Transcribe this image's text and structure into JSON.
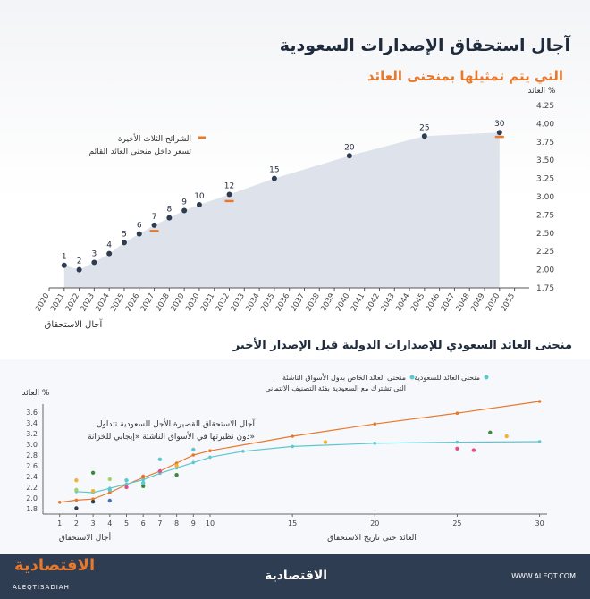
{
  "header": {
    "title": "آجال استحقاق الإصدارات السعودية",
    "subtitle": "التي يتم تمثيلها بمنحنى العائد"
  },
  "top_legend": {
    "line1": "الشرائح الثلاث الأخيرة",
    "line2": "تسعر داخل منحنى العائد القائم"
  },
  "middle": {
    "title": "منحنى العائد السعودي للإصدارات الدولية قبل الإصدار الأخير"
  },
  "bottom_legend": {
    "item1": "منحنى العائد للسعودية",
    "item2a": "منحنى العائد الخاص بدول الأسواق الناشئة",
    "item2b": "التي تشترك مع السعودية بفئة التصنيف الائتماني"
  },
  "bottom_annotation": {
    "line1": "آجال الاستحقاق القصيرة الأجل للسعودية تتداول",
    "line2": "دون نظيرتها في الأسواق الناشئة «إيجابي للخزانة»"
  },
  "footer": {
    "logo_ar": "الاقتصادية",
    "logo_en": "ALEQTISADIAH",
    "center": "الاقتصادية",
    "website": "WWW.ALEQT.COM"
  },
  "colors": {
    "navy": "#2f3d52",
    "orange": "#e8782b",
    "area": "#d8dde7",
    "teal": "#5bc8d0"
  },
  "chart_data": [
    {
      "type": "area",
      "title": "",
      "xlabel": "آجال الاستحقاق",
      "ylabel": "العائد %",
      "ylim": [
        1.75,
        4.25
      ],
      "yticks": [
        "1.75",
        "2.00",
        "2.25",
        "2.50",
        "2.75",
        "3.00",
        "3.25",
        "3.50",
        "3.75",
        "4.00",
        "4.25"
      ],
      "xticks": [
        "2020",
        "2021",
        "2022",
        "2023",
        "2024",
        "2025",
        "2026",
        "2027",
        "2028",
        "2029",
        "2030",
        "2031",
        "2032",
        "2033",
        "2034",
        "2035",
        "2036",
        "2037",
        "2038",
        "2039",
        "2040",
        "2041",
        "2042",
        "2043",
        "2044",
        "2045",
        "2046",
        "2047",
        "2048",
        "2049",
        "2050",
        "2055"
      ],
      "series": [
        {
          "points": [
            {
              "x": 2021,
              "y": 2.06,
              "label": "1"
            },
            {
              "x": 2022,
              "y": 2.0,
              "label": "2"
            },
            {
              "x": 2023,
              "y": 2.1,
              "label": "3"
            },
            {
              "x": 2024,
              "y": 2.22,
              "label": "4"
            },
            {
              "x": 2025,
              "y": 2.37,
              "label": "5"
            },
            {
              "x": 2026,
              "y": 2.49,
              "label": "6"
            },
            {
              "x": 2027,
              "y": 2.61,
              "label": "7"
            },
            {
              "x": 2028,
              "y": 2.71,
              "label": "8"
            },
            {
              "x": 2029,
              "y": 2.81,
              "label": "9"
            },
            {
              "x": 2030,
              "y": 2.89,
              "label": "10"
            },
            {
              "x": 2032,
              "y": 3.03,
              "label": "12"
            },
            {
              "x": 2035,
              "y": 3.25,
              "label": "15"
            },
            {
              "x": 2040,
              "y": 3.56,
              "label": "20"
            },
            {
              "x": 2045,
              "y": 3.83,
              "label": "25"
            },
            {
              "x": 2050,
              "y": 3.88,
              "label": "30"
            }
          ]
        },
        {
          "name": "الشرائح الثلاث الأخيرة",
          "marker": "dash",
          "points": [
            {
              "x": 2027,
              "y": 2.53
            },
            {
              "x": 2032,
              "y": 2.94
            },
            {
              "x": 2050,
              "y": 3.82
            }
          ]
        }
      ]
    },
    {
      "type": "line",
      "title": "",
      "xlabel": "أجال الاستحقاق",
      "xlabel2": "العائد حتى تاريخ الاستحقاق",
      "ylabel": "العائد %",
      "ylim": [
        1.7,
        3.75
      ],
      "yticks": [
        "1.8",
        "2.0",
        "2.2",
        "2.4",
        "2.6",
        "2.8",
        "3.0",
        "3.2",
        "3.4",
        "3.6"
      ],
      "xticks": [
        "1",
        "2",
        "3",
        "4",
        "5",
        "6",
        "7",
        "8",
        "9",
        "10",
        "15",
        "20",
        "25",
        "30"
      ],
      "series": [
        {
          "name": "منحنى العائد للسعودية",
          "color": "#e8782b",
          "points": [
            [
              1,
              1.92
            ],
            [
              2,
              1.96
            ],
            [
              3,
              1.98
            ],
            [
              4,
              2.1
            ],
            [
              5,
              2.25
            ],
            [
              6,
              2.38
            ],
            [
              7,
              2.5
            ],
            [
              8,
              2.65
            ],
            [
              9,
              2.8
            ],
            [
              10,
              2.88
            ],
            [
              15,
              3.15
            ],
            [
              20,
              3.38
            ],
            [
              25,
              3.58
            ],
            [
              30,
              3.8
            ]
          ]
        },
        {
          "name": "منحنى العائد الخاص بدول الأسواق الناشئة",
          "color": "#5bc8d0",
          "points": [
            [
              2,
              2.12
            ],
            [
              3,
              2.1
            ],
            [
              4,
              2.18
            ],
            [
              5,
              2.26
            ],
            [
              6,
              2.34
            ],
            [
              7,
              2.46
            ],
            [
              8,
              2.56
            ],
            [
              9,
              2.66
            ],
            [
              10,
              2.76
            ],
            [
              12,
              2.87
            ],
            [
              15,
              2.96
            ],
            [
              20,
              3.02
            ],
            [
              25,
              3.04
            ],
            [
              30,
              3.05
            ]
          ]
        }
      ],
      "scatter": [
        {
          "x": 2,
          "y": 1.81,
          "color": "#2f3d52"
        },
        {
          "x": 2,
          "y": 2.33,
          "color": "#f2b233"
        },
        {
          "x": 2,
          "y": 2.15,
          "color": "#9fd36a"
        },
        {
          "x": 3,
          "y": 1.93,
          "color": "#2f3d52"
        },
        {
          "x": 3,
          "y": 2.47,
          "color": "#3b8a3e"
        },
        {
          "x": 3,
          "y": 2.13,
          "color": "#f2b233"
        },
        {
          "x": 4,
          "y": 1.95,
          "color": "#4a6fb5"
        },
        {
          "x": 4,
          "y": 2.35,
          "color": "#9fd36a"
        },
        {
          "x": 4,
          "y": 2.15,
          "color": "#5bc8d0"
        },
        {
          "x": 5,
          "y": 2.2,
          "color": "#e84d8a"
        },
        {
          "x": 5,
          "y": 2.33,
          "color": "#5bc8d0"
        },
        {
          "x": 6,
          "y": 2.22,
          "color": "#3b8a3e"
        },
        {
          "x": 6,
          "y": 2.28,
          "color": "#5bc8d0"
        },
        {
          "x": 6,
          "y": 2.4,
          "color": "#e8782b"
        },
        {
          "x": 7,
          "y": 2.72,
          "color": "#5bc8d0"
        },
        {
          "x": 7,
          "y": 2.5,
          "color": "#e84d8a"
        },
        {
          "x": 8,
          "y": 2.43,
          "color": "#3b8a3e"
        },
        {
          "x": 8,
          "y": 2.6,
          "color": "#f2b233"
        },
        {
          "x": 9,
          "y": 2.9,
          "color": "#5bc8d0"
        },
        {
          "x": 17,
          "y": 3.04,
          "color": "#f2b233"
        },
        {
          "x": 25,
          "y": 2.92,
          "color": "#e84d8a"
        },
        {
          "x": 26,
          "y": 2.89,
          "color": "#e84d8a"
        },
        {
          "x": 27,
          "y": 3.22,
          "color": "#3b8a3e"
        },
        {
          "x": 28,
          "y": 3.15,
          "color": "#f2b233"
        }
      ]
    }
  ]
}
